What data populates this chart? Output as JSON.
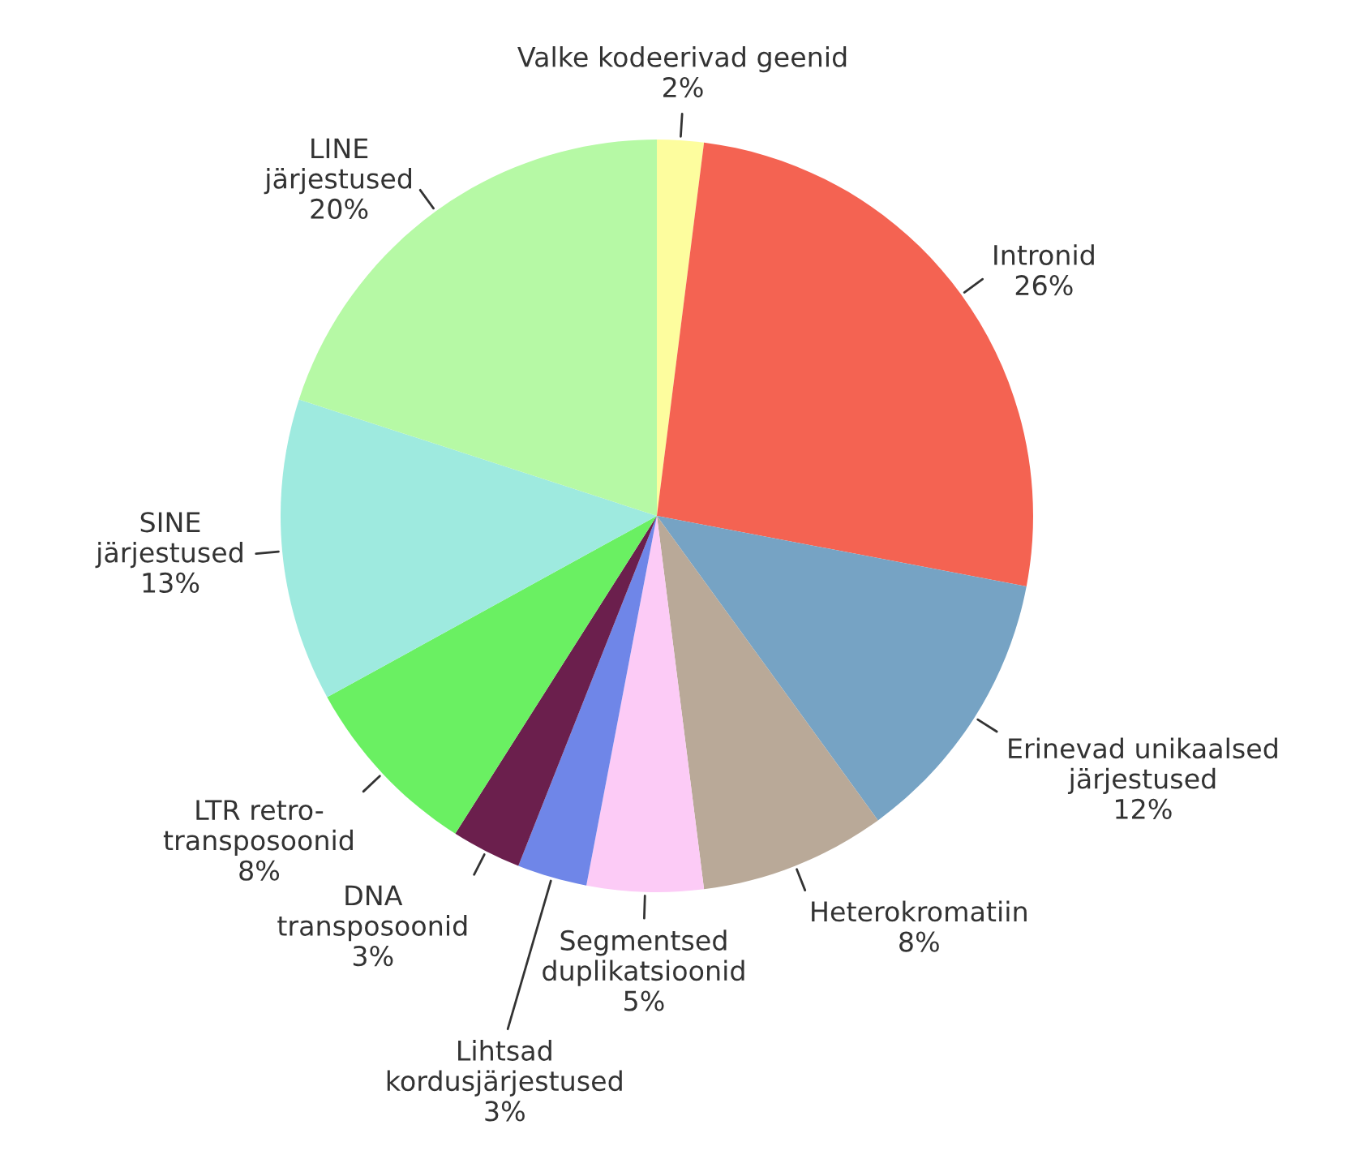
{
  "chart_data": {
    "type": "pie",
    "categories": [
      "Valke kodeerivad geenid",
      "Intronid",
      "Erinevad unikaalsed\njärjestused",
      "Heterokromatiin",
      "Segmentsed\nduplikatsioonid",
      "Lihtsad\nkordusjärjestused",
      "DNA\ntransposoonid",
      "LTR retro-\ntransposoonid",
      "SINE\njärjestused",
      "LINE\njärjestused"
    ],
    "values": [
      2,
      26,
      12,
      8,
      5,
      3,
      3,
      8,
      13,
      20
    ],
    "value_labels": [
      "2%",
      "26%",
      "12%",
      "8%",
      "5%",
      "3%",
      "3%",
      "8%",
      "13%",
      "20%"
    ],
    "colors": [
      "#fdfd9e",
      "#f46352",
      "#76a3c4",
      "#b9a998",
      "#fccbf6",
      "#6f86e8",
      "#6b1f4d",
      "#6af062",
      "#9eeadf",
      "#b6f9a5"
    ],
    "legend": false
  }
}
